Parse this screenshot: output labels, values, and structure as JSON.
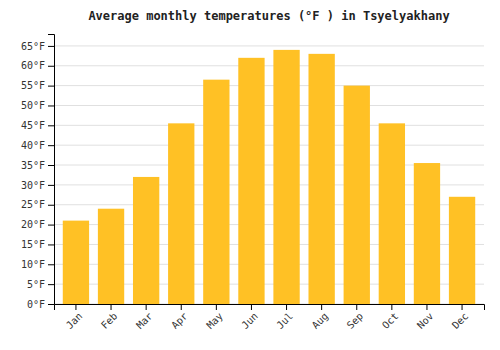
{
  "chart_data": {
    "type": "bar",
    "title": "Average monthly temperatures (°F ) in Tsyelyakhany",
    "categories": [
      "Jan",
      "Feb",
      "Mar",
      "Apr",
      "May",
      "Jun",
      "Jul",
      "Aug",
      "Sep",
      "Oct",
      "Nov",
      "Dec"
    ],
    "values": [
      21,
      24,
      32,
      45.5,
      56.5,
      62,
      64,
      63,
      55,
      45.5,
      35.5,
      27
    ],
    "color": "#FFC125",
    "ylim": [
      0,
      68
    ],
    "yticks": [
      {
        "value": 0,
        "label": "0°F"
      },
      {
        "value": 5,
        "label": "5°F"
      },
      {
        "value": 10,
        "label": "10°F"
      },
      {
        "value": 15,
        "label": "15°F"
      },
      {
        "value": 20,
        "label": "20°F"
      },
      {
        "value": 25,
        "label": "25°F"
      },
      {
        "value": 30,
        "label": "30°F"
      },
      {
        "value": 35,
        "label": "35°F"
      },
      {
        "value": 40,
        "label": "40°F"
      },
      {
        "value": 45,
        "label": "45°F"
      },
      {
        "value": 50,
        "label": "50°F"
      },
      {
        "value": 55,
        "label": "55°F"
      },
      {
        "value": 60,
        "label": "60°F"
      },
      {
        "value": 65,
        "label": "65°F"
      }
    ],
    "grid": true
  }
}
